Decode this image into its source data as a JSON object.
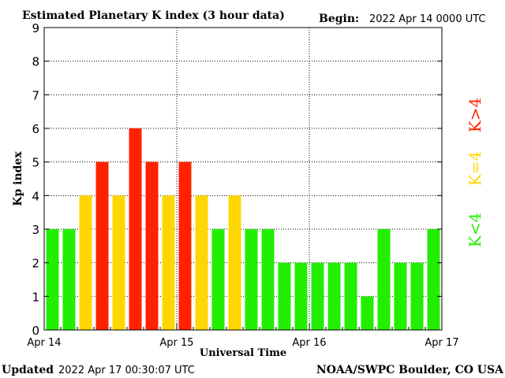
{
  "header": {
    "title": "Estimated Planetary K index (3 hour data)",
    "begin_label": "Begin:",
    "begin_value": "2022 Apr 14 0000 UTC"
  },
  "footer": {
    "updated_label": "Updated",
    "updated_value": "2022 Apr 17 00:30:07 UTC",
    "credit": "NOAA/SWPC Boulder, CO USA"
  },
  "legend": [
    {
      "label": "K>4",
      "color": "#ff2200"
    },
    {
      "label": "K=4",
      "color": "#ffd700"
    },
    {
      "label": "K<4",
      "color": "#22ee00"
    }
  ],
  "chart_data": {
    "type": "bar",
    "xlabel": "Universal Time",
    "ylabel": "Kp index",
    "ylim": [
      0,
      9
    ],
    "yticks": [
      0,
      1,
      2,
      3,
      4,
      5,
      6,
      7,
      8,
      9
    ],
    "xtick_labels": [
      "Apr 14",
      "Apr 15",
      "Apr 16",
      "Apr 17"
    ],
    "grid": true,
    "legend_position": "right",
    "values": [
      3,
      3,
      4,
      5,
      4,
      6,
      5,
      4,
      5,
      4,
      3,
      4,
      3,
      3,
      2,
      2,
      2,
      2,
      2,
      1,
      3,
      2,
      2,
      3
    ]
  }
}
